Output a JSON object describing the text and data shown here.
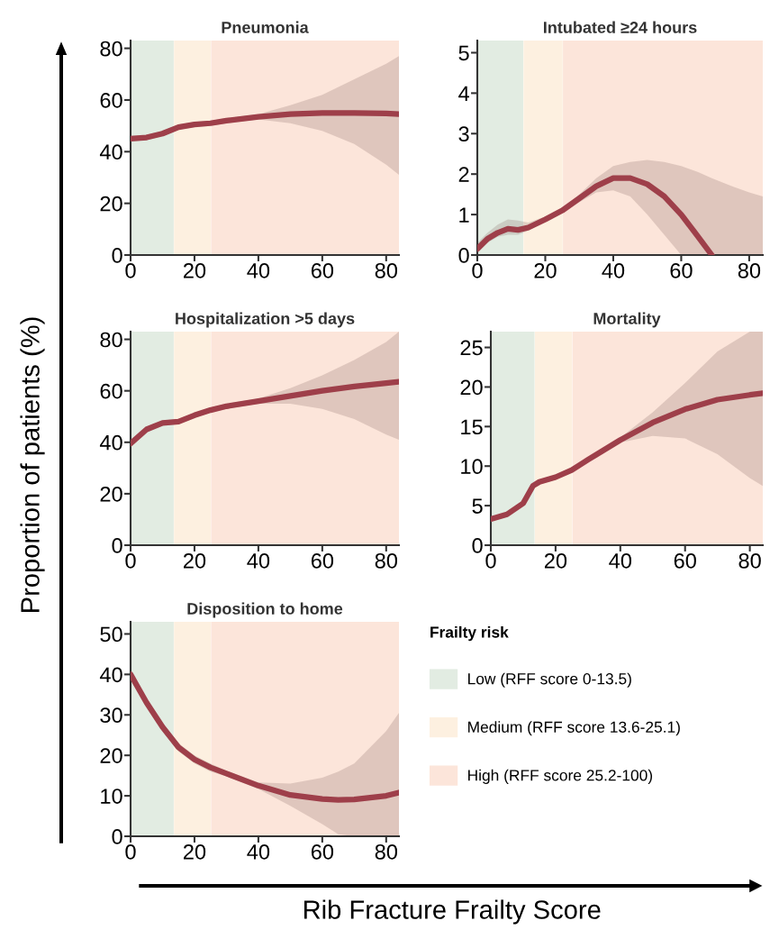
{
  "chart_data": [
    {
      "type": "line",
      "title": "Pneumonia",
      "ylabel": "Proportion of patients (%)",
      "xlim": [
        0,
        84
      ],
      "xticks": [
        0,
        20,
        40,
        60,
        80
      ],
      "ylim": [
        0,
        83
      ],
      "yticks": [
        0,
        20,
        40,
        60,
        80
      ],
      "grid": false,
      "legend": "bottom right",
      "legend_title": "Frailty risk",
      "bands": [
        {
          "axis": "x",
          "from": 0,
          "to": 13.5,
          "color": "#e2ece2",
          "label": "Low (RFF score 0-13.5)"
        },
        {
          "axis": "x",
          "from": 13.6,
          "to": 25.1,
          "color": "#fdf0e0",
          "label": "Medium (RFF score 13.6-25.1)"
        },
        {
          "axis": "x",
          "from": 25.2,
          "to": 84,
          "color": "#fce5da",
          "label": "High (RFF score 25.2-100)"
        }
      ],
      "series": [
        {
          "color": "#9e3f4a",
          "x": [
            0,
            5,
            10,
            15,
            20,
            25,
            30,
            40,
            50,
            60,
            70,
            80,
            84
          ],
          "values": [
            45,
            45.5,
            47,
            49.5,
            50.5,
            51,
            52,
            53.5,
            54.5,
            55,
            55,
            54.8,
            54.5
          ],
          "lower": [
            44,
            44.5,
            46,
            48.5,
            49.5,
            50,
            51,
            52.5,
            51,
            48,
            43,
            35,
            31
          ],
          "upper": [
            46,
            46.5,
            48,
            50.5,
            51.5,
            52,
            53,
            54.5,
            58,
            62,
            68,
            74,
            77
          ]
        }
      ]
    },
    {
      "type": "line",
      "title": "Intubated ≥24 hours",
      "xlim": [
        0,
        84
      ],
      "xticks": [
        0,
        20,
        40,
        60,
        80
      ],
      "ylim": [
        0,
        5.3
      ],
      "yticks": [
        0,
        1,
        2,
        3,
        4,
        5
      ],
      "grid": false,
      "legend": false,
      "bands": [
        {
          "axis": "x",
          "from": 0,
          "to": 13.5,
          "color": "#e2ece2"
        },
        {
          "axis": "x",
          "from": 13.6,
          "to": 25.1,
          "color": "#fdf0e0"
        },
        {
          "axis": "x",
          "from": 25.2,
          "to": 84,
          "color": "#fce5da"
        }
      ],
      "series": [
        {
          "color": "#9e3f4a",
          "x": [
            0,
            3,
            6,
            9,
            12,
            15,
            20,
            25,
            30,
            35,
            40,
            45,
            50,
            55,
            60,
            65,
            69,
            75,
            80,
            84
          ],
          "values": [
            0.15,
            0.4,
            0.55,
            0.65,
            0.62,
            0.68,
            0.88,
            1.1,
            1.4,
            1.7,
            1.9,
            1.9,
            1.75,
            1.45,
            1.0,
            0.45,
            0,
            null,
            null,
            null
          ],
          "lower": [
            0.05,
            0.3,
            0.45,
            0.5,
            0.5,
            0.6,
            0.82,
            1.05,
            1.3,
            1.55,
            1.6,
            1.45,
            1.0,
            0.5,
            0,
            0,
            0,
            0,
            0,
            0
          ],
          "upper": [
            0.3,
            0.55,
            0.75,
            0.88,
            0.85,
            0.8,
            0.95,
            1.15,
            1.5,
            1.9,
            2.2,
            2.3,
            2.35,
            2.3,
            2.2,
            2.05,
            1.9,
            1.7,
            1.55,
            1.45
          ]
        }
      ]
    },
    {
      "type": "line",
      "title": "Hospitalization >5 days",
      "xlim": [
        0,
        84
      ],
      "xticks": [
        0,
        20,
        40,
        60,
        80
      ],
      "ylim": [
        0,
        83
      ],
      "yticks": [
        0,
        20,
        40,
        60,
        80
      ],
      "grid": false,
      "legend": false,
      "bands": [
        {
          "axis": "x",
          "from": 0,
          "to": 13.5,
          "color": "#e2ece2"
        },
        {
          "axis": "x",
          "from": 13.6,
          "to": 25.1,
          "color": "#fdf0e0"
        },
        {
          "axis": "x",
          "from": 25.2,
          "to": 84,
          "color": "#fce5da"
        }
      ],
      "series": [
        {
          "color": "#9e3f4a",
          "x": [
            0,
            5,
            10,
            15,
            20,
            25,
            30,
            40,
            50,
            60,
            70,
            80,
            84
          ],
          "values": [
            39.5,
            45,
            47.5,
            48,
            50.5,
            52.5,
            54,
            56,
            58,
            60,
            61.7,
            63,
            63.5
          ],
          "lower": [
            38.5,
            44,
            46.5,
            47,
            49.5,
            51.5,
            53,
            55,
            55,
            53,
            49,
            43,
            41
          ],
          "upper": [
            40.5,
            46,
            48.5,
            49,
            51.5,
            53.5,
            55,
            57,
            61,
            66,
            72,
            79,
            83
          ]
        }
      ]
    },
    {
      "type": "line",
      "title": "Mortality",
      "xlim": [
        0,
        84
      ],
      "xticks": [
        0,
        20,
        40,
        60,
        80
      ],
      "ylim": [
        0,
        27
      ],
      "yticks": [
        0,
        5,
        10,
        15,
        20,
        25
      ],
      "grid": false,
      "legend": false,
      "bands": [
        {
          "axis": "x",
          "from": 0,
          "to": 13.5,
          "color": "#e2ece2"
        },
        {
          "axis": "x",
          "from": 13.6,
          "to": 25.1,
          "color": "#fdf0e0"
        },
        {
          "axis": "x",
          "from": 25.2,
          "to": 84,
          "color": "#fce5da"
        }
      ],
      "series": [
        {
          "color": "#9e3f4a",
          "x": [
            0,
            5,
            10,
            13,
            15,
            20,
            25,
            30,
            40,
            50,
            60,
            70,
            80,
            84
          ],
          "values": [
            3.3,
            3.9,
            5.3,
            7.5,
            8,
            8.6,
            9.5,
            10.8,
            13.3,
            15.5,
            17.2,
            18.4,
            19,
            19.2
          ],
          "lower": [
            3,
            3.6,
            5,
            7.2,
            7.7,
            8.3,
            9.2,
            10.5,
            13,
            13.8,
            13.5,
            11.5,
            8.5,
            7.5
          ],
          "upper": [
            3.6,
            4.2,
            5.6,
            7.8,
            8.3,
            8.9,
            9.8,
            11.1,
            13.6,
            16.8,
            20.5,
            24.5,
            27,
            27
          ]
        }
      ]
    },
    {
      "type": "line",
      "title": "Disposition to home",
      "xlabel": "Rib Fracture Frailty Score",
      "xlim": [
        0,
        84
      ],
      "xticks": [
        0,
        20,
        40,
        60,
        80
      ],
      "ylim": [
        0,
        53
      ],
      "yticks": [
        0,
        10,
        20,
        30,
        40,
        50
      ],
      "grid": false,
      "legend": false,
      "bands": [
        {
          "axis": "x",
          "from": 0,
          "to": 13.5,
          "color": "#e2ece2"
        },
        {
          "axis": "x",
          "from": 13.6,
          "to": 25.1,
          "color": "#fdf0e0"
        },
        {
          "axis": "x",
          "from": 25.2,
          "to": 84,
          "color": "#fce5da"
        }
      ],
      "series": [
        {
          "color": "#9e3f4a",
          "x": [
            0,
            5,
            10,
            15,
            20,
            25,
            30,
            40,
            50,
            60,
            65,
            70,
            80,
            84
          ],
          "values": [
            40,
            33,
            27,
            22,
            19,
            17,
            15.5,
            12.5,
            10.2,
            9.2,
            9,
            9.1,
            10,
            10.8
          ],
          "lower": [
            39,
            32,
            26,
            21,
            18,
            16,
            14.8,
            11.7,
            7.5,
            3,
            0.5,
            0,
            0,
            0
          ],
          "upper": [
            41,
            34,
            28,
            23,
            20,
            18,
            16.2,
            13.3,
            13,
            14.5,
            16,
            18,
            26,
            30.5
          ]
        }
      ]
    }
  ]
}
